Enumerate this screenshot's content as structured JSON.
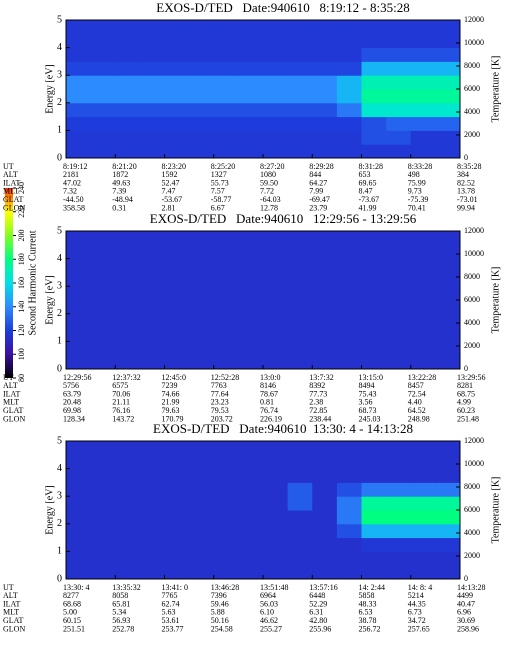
{
  "chart_data": [
    {
      "type": "heatmap",
      "title": "EXOS-D/TED   Date:940610   8:19:12 - 8:35:28",
      "ylabel": "Energy [eV]",
      "y2label": "Temperature [K]",
      "ylim": [
        0,
        5
      ],
      "yticks": [
        0,
        1,
        2,
        3,
        4,
        5
      ],
      "y2lim": [
        0,
        12000
      ],
      "y2ticks": [
        0,
        2000,
        4000,
        6000,
        8000,
        10000,
        12000
      ],
      "ybins": [
        0,
        0.5,
        1,
        1.5,
        2,
        2.5,
        3,
        3.5,
        4,
        4.5,
        5
      ],
      "z": [
        [
          118,
          118,
          118,
          118,
          118,
          118,
          118,
          118,
          118,
          118,
          118,
          118,
          118,
          118,
          118,
          118
        ],
        [
          118,
          118,
          118,
          118,
          118,
          118,
          118,
          118,
          118,
          118,
          118,
          118,
          125,
          125,
          118,
          118
        ],
        [
          120,
          120,
          120,
          120,
          120,
          120,
          120,
          120,
          120,
          120,
          120,
          120,
          125,
          130,
          130,
          130
        ],
        [
          125,
          125,
          125,
          125,
          125,
          125,
          125,
          125,
          125,
          125,
          125,
          135,
          165,
          165,
          165,
          165
        ],
        [
          140,
          140,
          140,
          140,
          140,
          140,
          140,
          140,
          140,
          140,
          140,
          150,
          175,
          175,
          175,
          175
        ],
        [
          140,
          140,
          140,
          140,
          140,
          140,
          140,
          140,
          140,
          140,
          140,
          150,
          170,
          170,
          170,
          170
        ],
        [
          122,
          122,
          122,
          122,
          122,
          122,
          122,
          122,
          122,
          122,
          122,
          122,
          150,
          150,
          150,
          150
        ],
        [
          118,
          118,
          118,
          118,
          118,
          118,
          118,
          118,
          118,
          118,
          118,
          118,
          125,
          125,
          125,
          125
        ],
        [
          118,
          118,
          118,
          118,
          118,
          118,
          118,
          118,
          118,
          118,
          118,
          118,
          118,
          118,
          118,
          118
        ],
        [
          118,
          118,
          118,
          118,
          118,
          118,
          118,
          118,
          118,
          118,
          118,
          118,
          118,
          118,
          118,
          118
        ]
      ],
      "ephemeris": {
        "rows": [
          "UT",
          "ALT",
          "ILAT",
          "MLT",
          "GLAT",
          "GLON"
        ],
        "values": [
          [
            "8:19:12",
            "8:21:20",
            "8:23:20",
            "8:25:20",
            "8:27:20",
            "8:29:28",
            "8:31:28",
            "8:33:28",
            "8:35:28"
          ],
          [
            "2181",
            "1872",
            "1592",
            "1327",
            "1080",
            "844",
            "653",
            "498",
            "384"
          ],
          [
            "47.02",
            "49.63",
            "52.47",
            "55.73",
            "59.50",
            "64.27",
            "69.65",
            "75.99",
            "82.52"
          ],
          [
            "7.32",
            "7.39",
            "7.47",
            "7.57",
            "7.72",
            "7.99",
            "8.47",
            "9.73",
            "13.78"
          ],
          [
            "-44.50",
            "-48.94",
            "-53.67",
            "-58.77",
            "-64.03",
            "-69.47",
            "-73.67",
            "-75.39",
            "-73.01"
          ],
          [
            "358.58",
            "0.31",
            "2.81",
            "6.67",
            "12.78",
            "23.79",
            "41.99",
            "70.41",
            "99.94"
          ]
        ]
      }
    },
    {
      "type": "heatmap",
      "title": "EXOS-D/TED   Date:940610   12:29:56 - 13:29:56",
      "ylabel": "Energy [eV]",
      "y2label": "Temperature [K]",
      "ylim": [
        0,
        5
      ],
      "yticks": [
        0,
        1,
        2,
        3,
        4,
        5
      ],
      "y2lim": [
        0,
        12000
      ],
      "y2ticks": [
        0,
        2000,
        4000,
        6000,
        8000,
        10000,
        12000
      ],
      "ybins": [
        0,
        0.5,
        1,
        1.5,
        2,
        2.5,
        3,
        3.5,
        4,
        4.5,
        5
      ],
      "z": [
        [
          115,
          115,
          115,
          115,
          115,
          115,
          115,
          115,
          115,
          115,
          115,
          115,
          115,
          115,
          115,
          115
        ],
        [
          115,
          115,
          115,
          115,
          115,
          115,
          115,
          115,
          115,
          115,
          115,
          115,
          115,
          115,
          115,
          115
        ],
        [
          115,
          115,
          115,
          115,
          115,
          115,
          115,
          115,
          115,
          115,
          115,
          115,
          115,
          115,
          115,
          115
        ],
        [
          115,
          115,
          115,
          115,
          115,
          115,
          115,
          115,
          115,
          115,
          115,
          115,
          115,
          115,
          115,
          115
        ],
        [
          115,
          115,
          115,
          115,
          115,
          115,
          115,
          115,
          115,
          115,
          115,
          115,
          115,
          115,
          115,
          115
        ],
        [
          115,
          115,
          115,
          115,
          115,
          115,
          115,
          115,
          115,
          115,
          115,
          115,
          115,
          115,
          115,
          115
        ],
        [
          115,
          115,
          115,
          115,
          115,
          115,
          115,
          115,
          115,
          115,
          115,
          115,
          115,
          115,
          115,
          115
        ],
        [
          115,
          115,
          115,
          115,
          115,
          115,
          115,
          115,
          115,
          115,
          115,
          115,
          115,
          115,
          115,
          115
        ],
        [
          115,
          115,
          115,
          115,
          115,
          115,
          115,
          115,
          115,
          115,
          115,
          115,
          115,
          115,
          115,
          115
        ],
        [
          115,
          115,
          115,
          115,
          115,
          115,
          115,
          115,
          115,
          115,
          115,
          115,
          115,
          115,
          115,
          115
        ]
      ],
      "ephemeris": {
        "rows": [
          "UT",
          "ALT",
          "ILAT",
          "MLT",
          "GLAT",
          "GLON"
        ],
        "values": [
          [
            "12:29:56",
            "12:37:32",
            "12:45:0",
            "12:52:28",
            "13:0:0",
            "13:7:32",
            "13:15:0",
            "13:22:28",
            "13:29:56"
          ],
          [
            "5756",
            "6575",
            "7239",
            "7763",
            "8146",
            "8392",
            "8494",
            "8457",
            "8281"
          ],
          [
            "63.79",
            "70.06",
            "74.66",
            "77.64",
            "78.67",
            "77.73",
            "75.43",
            "72.54",
            "68.75"
          ],
          [
            "20.48",
            "21.11",
            "21.99",
            "23.23",
            "0.81",
            "2.38",
            "3.56",
            "4.40",
            "4.99"
          ],
          [
            "69.98",
            "76.16",
            "79.63",
            "79.53",
            "76.74",
            "72.85",
            "68.73",
            "64.52",
            "60.23"
          ],
          [
            "128.34",
            "143.72",
            "170.79",
            "203.72",
            "226.19",
            "238.44",
            "245.03",
            "248.98",
            "251.48"
          ]
        ]
      }
    },
    {
      "type": "heatmap",
      "title": "EXOS-D/TED   Date:940610  13:30: 4 - 14:13:28",
      "ylabel": "Energy [eV]",
      "y2label": "Temperature [K]",
      "ylim": [
        0,
        5
      ],
      "yticks": [
        0,
        1,
        2,
        3,
        4,
        5
      ],
      "y2lim": [
        0,
        12000
      ],
      "y2ticks": [
        0,
        2000,
        4000,
        6000,
        8000,
        10000,
        12000
      ],
      "ybins": [
        0,
        0.5,
        1,
        1.5,
        2,
        2.5,
        3,
        3.5,
        4,
        4.5,
        5
      ],
      "z": [
        [
          115,
          115,
          115,
          115,
          115,
          115,
          115,
          115,
          115,
          115,
          115,
          115,
          115,
          115,
          115,
          115
        ],
        [
          115,
          115,
          115,
          115,
          115,
          115,
          115,
          115,
          115,
          115,
          115,
          115,
          115,
          115,
          115,
          115
        ],
        [
          115,
          115,
          115,
          115,
          115,
          115,
          115,
          115,
          115,
          115,
          115,
          115,
          118,
          118,
          118,
          118
        ],
        [
          115,
          115,
          115,
          115,
          115,
          115,
          115,
          115,
          115,
          115,
          115,
          125,
          150,
          150,
          150,
          150
        ],
        [
          115,
          115,
          115,
          115,
          115,
          115,
          115,
          115,
          115,
          115,
          115,
          135,
          180,
          180,
          180,
          180
        ],
        [
          115,
          115,
          115,
          115,
          115,
          115,
          115,
          115,
          115,
          128,
          115,
          135,
          175,
          175,
          175,
          175
        ],
        [
          115,
          115,
          115,
          115,
          115,
          115,
          115,
          115,
          115,
          128,
          115,
          125,
          135,
          135,
          135,
          135
        ],
        [
          115,
          115,
          115,
          115,
          115,
          115,
          115,
          115,
          115,
          115,
          115,
          115,
          115,
          115,
          115,
          115
        ],
        [
          115,
          115,
          115,
          115,
          115,
          115,
          115,
          115,
          115,
          115,
          115,
          115,
          115,
          115,
          115,
          115
        ],
        [
          115,
          115,
          115,
          115,
          115,
          115,
          115,
          115,
          115,
          115,
          115,
          115,
          115,
          115,
          115,
          115
        ]
      ],
      "ephemeris": {
        "rows": [
          "UT",
          "ALT",
          "ILAT",
          "MLT",
          "GLAT",
          "GLON"
        ],
        "values": [
          [
            "13:30: 4",
            "13:35:32",
            "13:41: 0",
            "13:46:28",
            "13:51:48",
            "13:57:16",
            "14: 2:44",
            "14: 8: 4",
            "14:13:28"
          ],
          [
            "8277",
            "8058",
            "7765",
            "7396",
            "6964",
            "6448",
            "5858",
            "5214",
            "4499"
          ],
          [
            "68.68",
            "65.81",
            "62.74",
            "59.46",
            "56.03",
            "52.29",
            "48.33",
            "44.35",
            "40.47"
          ],
          [
            "5.00",
            "5.34",
            "5.63",
            "5.88",
            "6.10",
            "6.31",
            "6.53",
            "6.73",
            "6.96"
          ],
          [
            "60.15",
            "56.93",
            "53.61",
            "50.16",
            "46.62",
            "42.80",
            "38.78",
            "34.72",
            "30.69"
          ],
          [
            "251.51",
            "252.78",
            "253.77",
            "254.58",
            "255.27",
            "255.96",
            "256.72",
            "257.65",
            "258.96"
          ]
        ]
      }
    }
  ],
  "colorbar": {
    "label": "Second Harmonic Current",
    "lim": [
      80,
      240
    ],
    "ticks": [
      80,
      100,
      120,
      140,
      160,
      180,
      200,
      220,
      240
    ],
    "colors": [
      "#000000",
      "#3a10a0",
      "#1e3cdc",
      "#2c8cff",
      "#00e0e8",
      "#00ff80",
      "#80ff20",
      "#ffff00",
      "#ff3000"
    ]
  }
}
